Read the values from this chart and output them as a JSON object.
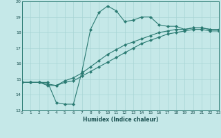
{
  "xlabel": "Humidex (Indice chaleur)",
  "xlim": [
    0,
    23
  ],
  "ylim": [
    13,
    20
  ],
  "yticks": [
    13,
    14,
    15,
    16,
    17,
    18,
    19,
    20
  ],
  "xticks": [
    0,
    1,
    2,
    3,
    4,
    5,
    6,
    7,
    8,
    9,
    10,
    11,
    12,
    13,
    14,
    15,
    16,
    17,
    18,
    19,
    20,
    21,
    22,
    23
  ],
  "bg_color": "#c5e8e8",
  "line_color": "#2a7a72",
  "grid_color": "#a8d4d4",
  "line1_x": [
    0,
    1,
    2,
    3,
    4,
    5,
    6,
    7,
    8,
    9,
    10,
    11,
    12,
    13,
    14,
    15,
    16,
    17,
    18,
    19,
    20,
    21,
    22,
    23
  ],
  "line1_y": [
    14.8,
    14.8,
    14.8,
    14.8,
    13.5,
    13.4,
    13.4,
    15.5,
    18.2,
    19.3,
    19.7,
    19.4,
    18.7,
    18.8,
    19.0,
    19.0,
    18.5,
    18.4,
    18.4,
    18.2,
    18.3,
    18.3,
    18.2,
    18.2
  ],
  "line2_x": [
    0,
    1,
    2,
    3,
    4,
    5,
    6,
    7,
    8,
    9,
    10,
    11,
    12,
    13,
    14,
    15,
    16,
    17,
    18,
    19,
    20,
    21,
    22,
    23
  ],
  "line2_y": [
    14.8,
    14.8,
    14.8,
    14.7,
    14.6,
    14.9,
    15.1,
    15.4,
    15.8,
    16.2,
    16.6,
    16.9,
    17.2,
    17.4,
    17.6,
    17.8,
    18.0,
    18.1,
    18.2,
    18.2,
    18.3,
    18.3,
    18.2,
    18.2
  ],
  "line3_x": [
    0,
    1,
    2,
    3,
    4,
    5,
    6,
    7,
    8,
    9,
    10,
    11,
    12,
    13,
    14,
    15,
    16,
    17,
    18,
    19,
    20,
    21,
    22,
    23
  ],
  "line3_y": [
    14.8,
    14.8,
    14.8,
    14.6,
    14.6,
    14.8,
    14.9,
    15.2,
    15.5,
    15.8,
    16.1,
    16.4,
    16.7,
    17.0,
    17.3,
    17.5,
    17.7,
    17.9,
    18.0,
    18.1,
    18.2,
    18.2,
    18.1,
    18.1
  ]
}
